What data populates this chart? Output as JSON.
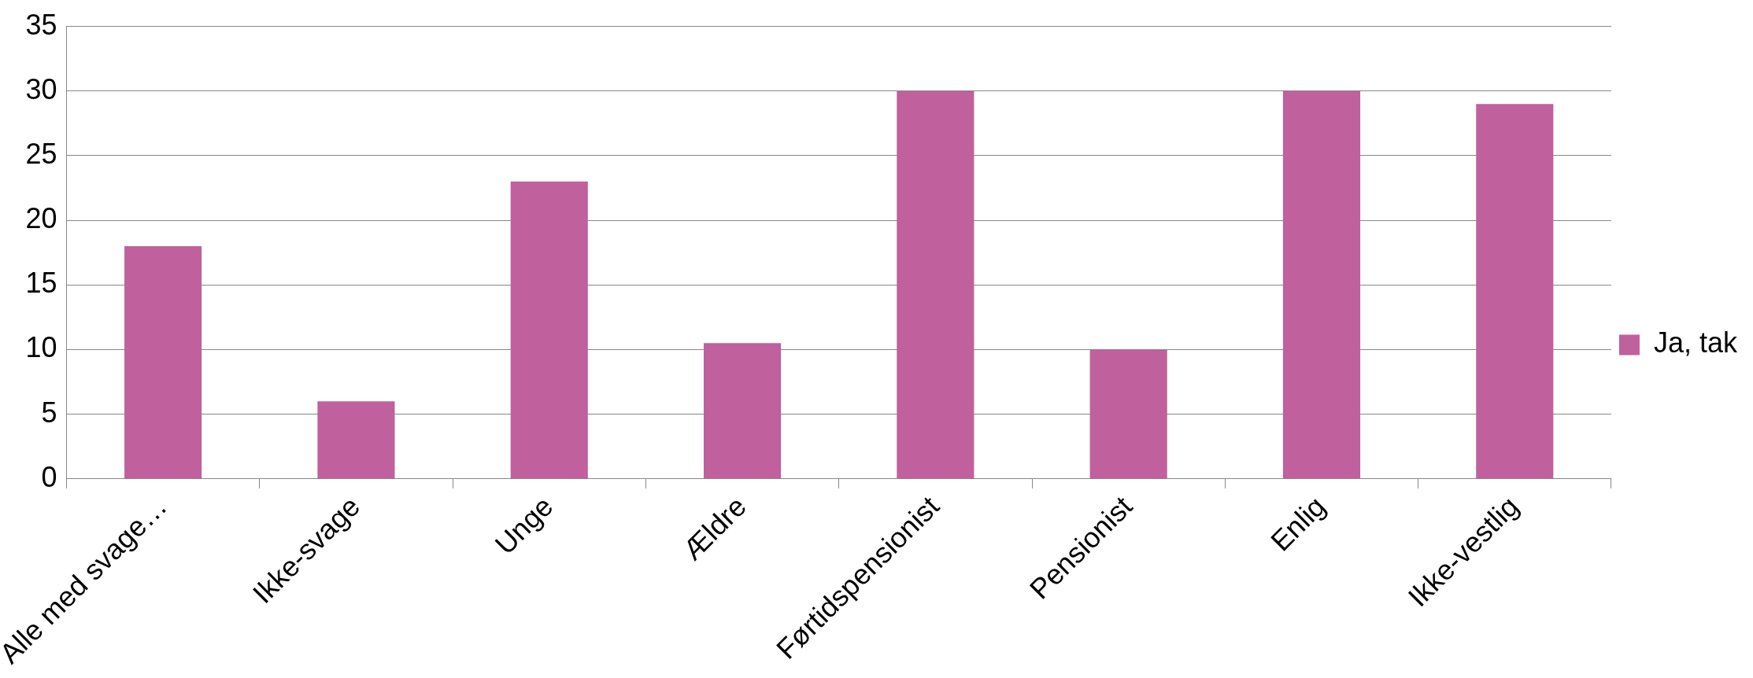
{
  "chart_data": {
    "type": "bar",
    "categories": [
      "Alle med svage…",
      "Ikke-svage",
      "Unge",
      "Ældre",
      "Førtidspensionist",
      "Pensionist",
      "Enlig",
      "Ikke-vestlig"
    ],
    "series": [
      {
        "name": "Ja, tak",
        "color": "#c0609c",
        "values": [
          18,
          6,
          23,
          10.5,
          30,
          10,
          30,
          29
        ]
      }
    ],
    "ylim": [
      0,
      35
    ],
    "yticks": [
      0,
      5,
      10,
      15,
      20,
      25,
      30,
      35
    ],
    "grid": "y",
    "legend": "right"
  }
}
